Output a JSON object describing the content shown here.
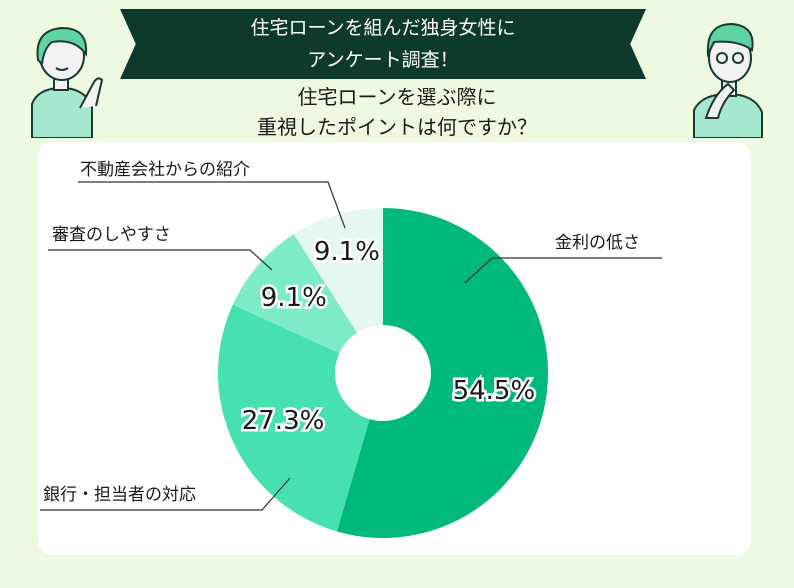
{
  "header": {
    "banner_line1": "住宅ローンを組んだ独身女性に",
    "banner_line2": "アンケート調査！",
    "question_line1": "住宅ローンを選ぶ際に",
    "question_line2": "重視したポイントは何ですか？"
  },
  "colors": {
    "background": "#eef9e1",
    "banner": "#0d3a2c",
    "slice_1": "#00b97a",
    "slice_2": "#47e0b0",
    "slice_3": "#7deac8",
    "slice_4": "#e4f7f0"
  },
  "chart_data": {
    "type": "pie",
    "donut": true,
    "labels": [
      "金利の低さ",
      "銀行・担当者の対応",
      "審査のしやすさ",
      "不動産会社からの紹介"
    ],
    "values": [
      54.5,
      27.3,
      9.1,
      9.1
    ],
    "value_labels": [
      "54.5%",
      "27.3%",
      "9.1%",
      "9.1%"
    ],
    "colors": [
      "#00b97a",
      "#47e0b0",
      "#7deac8",
      "#e4f7f0"
    ]
  }
}
